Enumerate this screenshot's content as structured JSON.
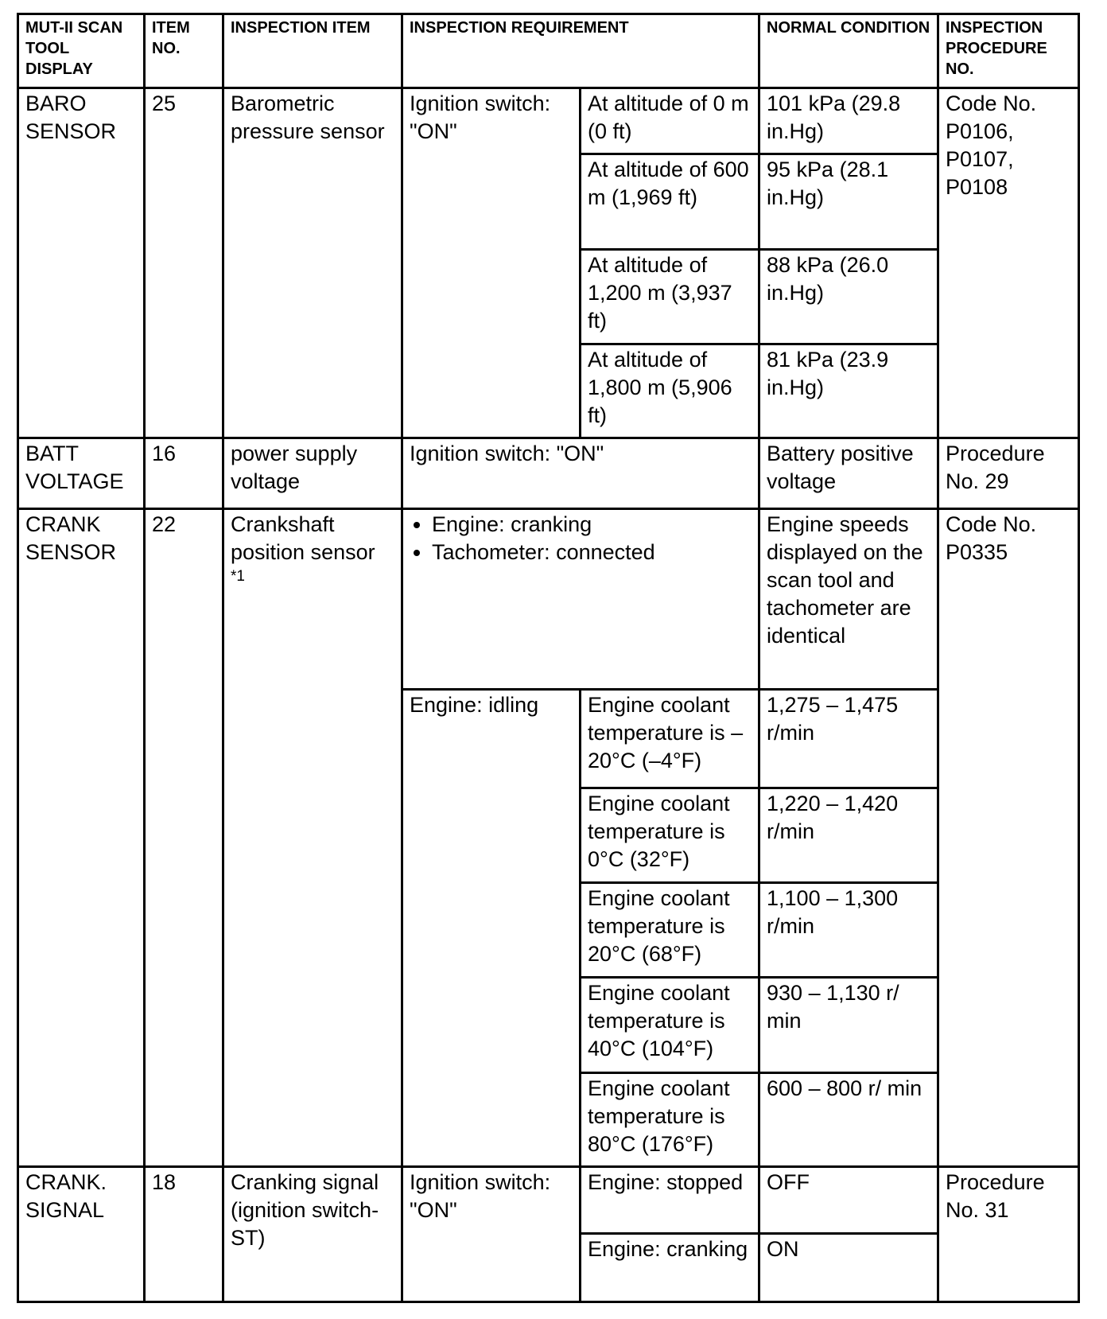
{
  "header": [
    "MUT-II SCAN TOOL DISPLAY",
    "ITEM NO.",
    "INSPECTION ITEM",
    "INSPECTION REQUIREMENT",
    "NORMAL CONDITION",
    "INSPECTION PROCEDURE NO."
  ],
  "baro": {
    "display": "BARO SENSOR",
    "item_no": "25",
    "item": "Barometric pressure sensor",
    "requirement": "Ignition switch: \"ON\"",
    "procedure": "Code No. P0106, P0107, P0108",
    "rows": [
      {
        "condition": "At altitude of 0 m (0 ft)",
        "normal": "101 kPa (29.8 in.Hg)"
      },
      {
        "condition": "At altitude of 600 m (1,969 ft)",
        "normal": "95 kPa  (28.1 in.Hg)"
      },
      {
        "condition": "At altitude of 1,200 m (3,937 ft)",
        "normal": "88 kPa  (26.0 in.Hg)"
      },
      {
        "condition": "At altitude of 1,800 m (5,906 ft)",
        "normal": "81 kPa  (23.9 in.Hg)"
      }
    ]
  },
  "batt": {
    "display": "BATT VOLTAGE",
    "item_no": "16",
    "item": "power supply voltage",
    "requirement": "Ignition switch: \"ON\"",
    "normal": "Battery positive voltage",
    "procedure": "Procedure No. 29"
  },
  "crank": {
    "display": "CRANK SENSOR",
    "item_no": "22",
    "item": "Crankshaft position sensor",
    "item_note": "*1",
    "procedure": "Code No. P0335",
    "bullets": [
      "Engine: cranking",
      "Tachometer: connected"
    ],
    "bullets_normal": "Engine speeds displayed on the scan tool and tachometer are identical",
    "idle_requirement": "Engine: idling",
    "rows": [
      {
        "condition": "Engine coolant temperature is –20°C (–4°F)",
        "normal": "1,275 – 1,475 r/min"
      },
      {
        "condition": "Engine coolant temperature is 0°C (32°F)",
        "normal": "1,220 – 1,420 r/min"
      },
      {
        "condition": "Engine coolant temperature is 20°C (68°F)",
        "normal": "1,100 – 1,300 r/min"
      },
      {
        "condition": "Engine coolant temperature is 40°C (104°F)",
        "normal": "930 – 1,130 r/ min"
      },
      {
        "condition": "Engine coolant temperature is 80°C (176°F)",
        "normal": "600 – 800 r/ min"
      }
    ]
  },
  "crank_signal": {
    "display": "CRANK. SIGNAL",
    "item_no": "18",
    "item": "Cranking signal (ignition switch-ST)",
    "requirement": "Ignition switch: \"ON\"",
    "procedure": "Procedure No. 31",
    "rows": [
      {
        "condition": "Engine: stopped",
        "normal": "OFF"
      },
      {
        "condition": "Engine: cranking",
        "normal": "ON"
      }
    ]
  }
}
